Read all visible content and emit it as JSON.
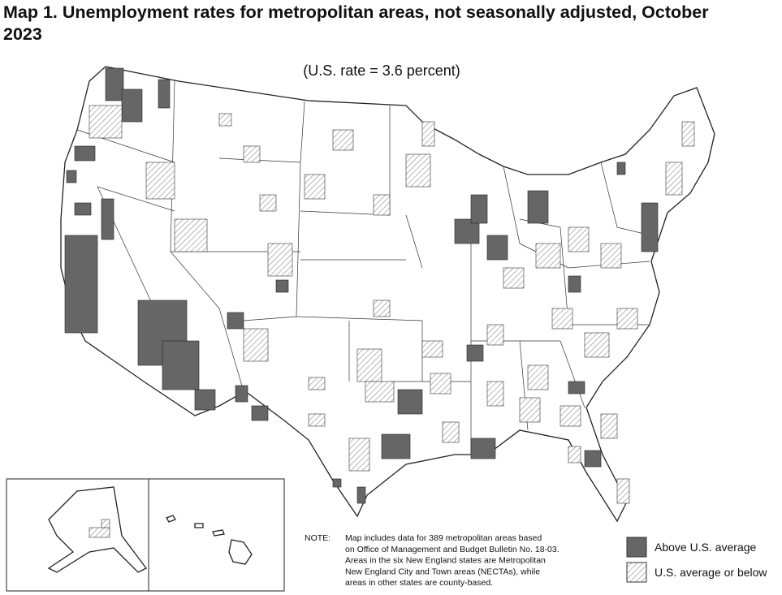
{
  "title": "Map 1. Unemployment rates for metropolitan areas, not seasonally adjusted, October 2023",
  "subtitle": "(U.S. rate = 3.6 percent)",
  "note": {
    "label": "NOTE:",
    "lines": [
      "Map includes data for 389 metropolitan areas based",
      "on Office of Management and Budget Bulletin No. 18-03.",
      "Areas in the six New England states are Metropolitan",
      "New England City and Town areas (NECTAs), while",
      "areas in other states are county-based."
    ]
  },
  "legend": [
    {
      "label": "Above U.S. average",
      "color": "#666666"
    },
    {
      "label": "U.S. average or below",
      "color": "#9a9a9a"
    }
  ]
}
